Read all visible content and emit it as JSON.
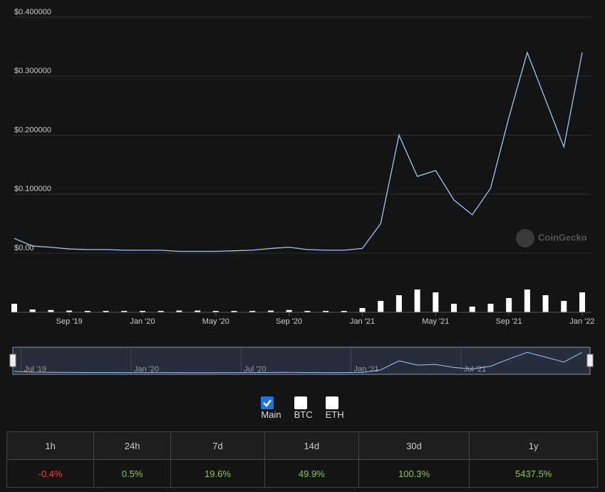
{
  "chart_data": {
    "type": "line",
    "x": [
      "2019-06",
      "2019-07",
      "2019-08",
      "2019-09",
      "2019-10",
      "2019-11",
      "2019-12",
      "2020-01",
      "2020-02",
      "2020-03",
      "2020-04",
      "2020-05",
      "2020-06",
      "2020-07",
      "2020-08",
      "2020-09",
      "2020-10",
      "2020-11",
      "2020-12",
      "2021-01",
      "2021-02",
      "2021-03",
      "2021-04",
      "2021-05",
      "2021-06",
      "2021-07",
      "2021-08",
      "2021-09",
      "2021-10",
      "2021-11",
      "2021-12",
      "2022-01"
    ],
    "series": [
      {
        "color": "#9ec5f8",
        "values": [
          0.025,
          0.012,
          0.01,
          0.007,
          0.006,
          0.006,
          0.005,
          0.005,
          0.005,
          0.003,
          0.003,
          0.003,
          0.004,
          0.005,
          0.008,
          0.01,
          0.006,
          0.005,
          0.005,
          0.008,
          0.05,
          0.2,
          0.13,
          0.14,
          0.09,
          0.065,
          0.11,
          0.23,
          0.34,
          0.26,
          0.18,
          0.34
        ]
      }
    ],
    "volume": {
      "color": "#ffffff",
      "values": [
        0.3,
        0.1,
        0.08,
        0.06,
        0.05,
        0.05,
        0.05,
        0.05,
        0.05,
        0.06,
        0.06,
        0.05,
        0.05,
        0.05,
        0.06,
        0.08,
        0.05,
        0.05,
        0.05,
        0.15,
        0.4,
        0.6,
        0.8,
        0.7,
        0.3,
        0.2,
        0.3,
        0.5,
        0.8,
        0.6,
        0.4,
        0.7
      ],
      "ylim": [
        0,
        1
      ]
    },
    "xlim": [
      "2019-06",
      "2022-01"
    ],
    "xticks": [
      {
        "value": "2019-09",
        "label": "Sep '19"
      },
      {
        "value": "2020-01",
        "label": "Jan '20"
      },
      {
        "value": "2020-05",
        "label": "May '20"
      },
      {
        "value": "2020-09",
        "label": "Sep '20"
      },
      {
        "value": "2021-01",
        "label": "Jan '21"
      },
      {
        "value": "2021-05",
        "label": "May '21"
      },
      {
        "value": "2021-09",
        "label": "Sep '21"
      },
      {
        "value": "2022-01",
        "label": "Jan '22"
      }
    ],
    "ylim": [
      0,
      0.4
    ],
    "yticks": [
      {
        "value": 0,
        "label": "$0.00"
      },
      {
        "value": 0.1,
        "label": "$0.100000"
      },
      {
        "value": 0.2,
        "label": "$0.200000"
      },
      {
        "value": 0.3,
        "label": "$0.300000"
      },
      {
        "value": 0.4,
        "label": "$0.400000"
      }
    ],
    "grid": true,
    "watermark": "CoinGecko",
    "navigator": {
      "xticks": [
        {
          "value": "2019-07",
          "label": "Jul '19"
        },
        {
          "value": "2020-01",
          "label": "Jan '20"
        },
        {
          "value": "2020-07",
          "label": "Jul '20"
        },
        {
          "value": "2021-01",
          "label": "Jan '21"
        },
        {
          "value": "2021-07",
          "label": "Jul '21"
        }
      ]
    }
  },
  "options": [
    {
      "label": "Main",
      "checked": true
    },
    {
      "label": "BTC",
      "checked": false
    },
    {
      "label": "ETH",
      "checked": false
    }
  ],
  "change_table": {
    "headers": [
      "1h",
      "24h",
      "7d",
      "14d",
      "30d",
      "1y"
    ],
    "values": [
      "-0.4%",
      "0.5%",
      "19.6%",
      "49.9%",
      "100.3%",
      "5437.5%"
    ],
    "colors": [
      "#ff3a33",
      "#8dc647",
      "#8dc647",
      "#8dc647",
      "#8dc647",
      "#8dc647"
    ]
  }
}
